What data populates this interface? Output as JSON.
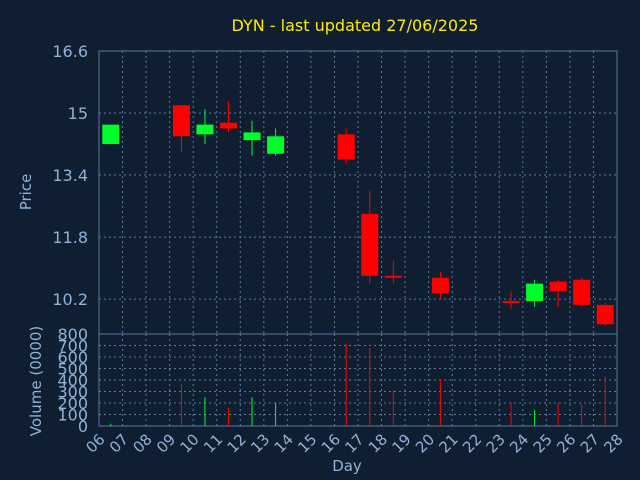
{
  "chart_data": {
    "type": "candlestick",
    "title": "DYN - last updated 27/06/2025",
    "xlabel": "Day",
    "ylabel_price": "Price",
    "ylabel_volume": "Volume (0000)",
    "x_ticks": [
      "06",
      "07",
      "08",
      "09",
      "10",
      "11",
      "12",
      "13",
      "14",
      "15",
      "16",
      "17",
      "18",
      "19",
      "20",
      "21",
      "22",
      "23",
      "24",
      "25",
      "26",
      "27",
      "28"
    ],
    "price_ticks": [
      16.6,
      15,
      13.4,
      11.8,
      10.2
    ],
    "price_tick_labels": [
      "16.6",
      "15",
      "13.4",
      "11.8",
      "10.2"
    ],
    "price_range": [
      9.3,
      16.6
    ],
    "volume_ticks": [
      0,
      100,
      200,
      300,
      400,
      500,
      600,
      700,
      800
    ],
    "volume_tick_labels": [
      "0",
      "100",
      "200",
      "300",
      "400",
      "500",
      "600",
      "700",
      "800"
    ],
    "volume_range": [
      0,
      800
    ],
    "grid": true,
    "colors": {
      "up": "#00ff2a",
      "down": "#ff0000",
      "background": "#0f1e30",
      "plot_border": "#5a7ba0",
      "grid": "#5a7ba0",
      "title": "#ffee00",
      "ticks": "#8fb3d9"
    },
    "candles": [
      {
        "day": "06",
        "open": 14.2,
        "high": 14.7,
        "low": 14.2,
        "close": 14.7,
        "volume": 20
      },
      {
        "day": "09",
        "open": 15.2,
        "high": 15.2,
        "low": 14.0,
        "close": 14.4,
        "volume": 370
      },
      {
        "day": "10",
        "open": 14.45,
        "high": 15.1,
        "low": 14.2,
        "close": 14.7,
        "volume": 250
      },
      {
        "day": "11",
        "open": 14.75,
        "high": 15.3,
        "low": 14.5,
        "close": 14.6,
        "volume": 160
      },
      {
        "day": "12",
        "open": 14.3,
        "high": 14.8,
        "low": 13.9,
        "close": 14.5,
        "volume": 250
      },
      {
        "day": "13",
        "open": 13.95,
        "high": 14.6,
        "low": 13.9,
        "close": 14.4,
        "volume": 200
      },
      {
        "day": "16",
        "open": 14.45,
        "high": 14.6,
        "low": 13.7,
        "close": 13.8,
        "volume": 720
      },
      {
        "day": "17",
        "open": 12.4,
        "high": 13.0,
        "low": 10.6,
        "close": 10.8,
        "volume": 680
      },
      {
        "day": "18",
        "open": 10.8,
        "high": 11.2,
        "low": 10.6,
        "close": 10.75,
        "volume": 310
      },
      {
        "day": "20",
        "open": 10.75,
        "high": 10.9,
        "low": 10.2,
        "close": 10.35,
        "volume": 400
      },
      {
        "day": "23",
        "open": 10.15,
        "high": 10.4,
        "low": 9.95,
        "close": 10.1,
        "volume": 200
      },
      {
        "day": "24",
        "open": 10.15,
        "high": 10.7,
        "low": 10.0,
        "close": 10.6,
        "volume": 140
      },
      {
        "day": "25",
        "open": 10.65,
        "high": 10.7,
        "low": 10.0,
        "close": 10.4,
        "volume": 200
      },
      {
        "day": "26",
        "open": 10.7,
        "high": 10.75,
        "low": 10.0,
        "close": 10.05,
        "volume": 190
      },
      {
        "day": "27",
        "open": 10.05,
        "high": 10.1,
        "low": 9.5,
        "close": 9.55,
        "volume": 430
      }
    ]
  }
}
